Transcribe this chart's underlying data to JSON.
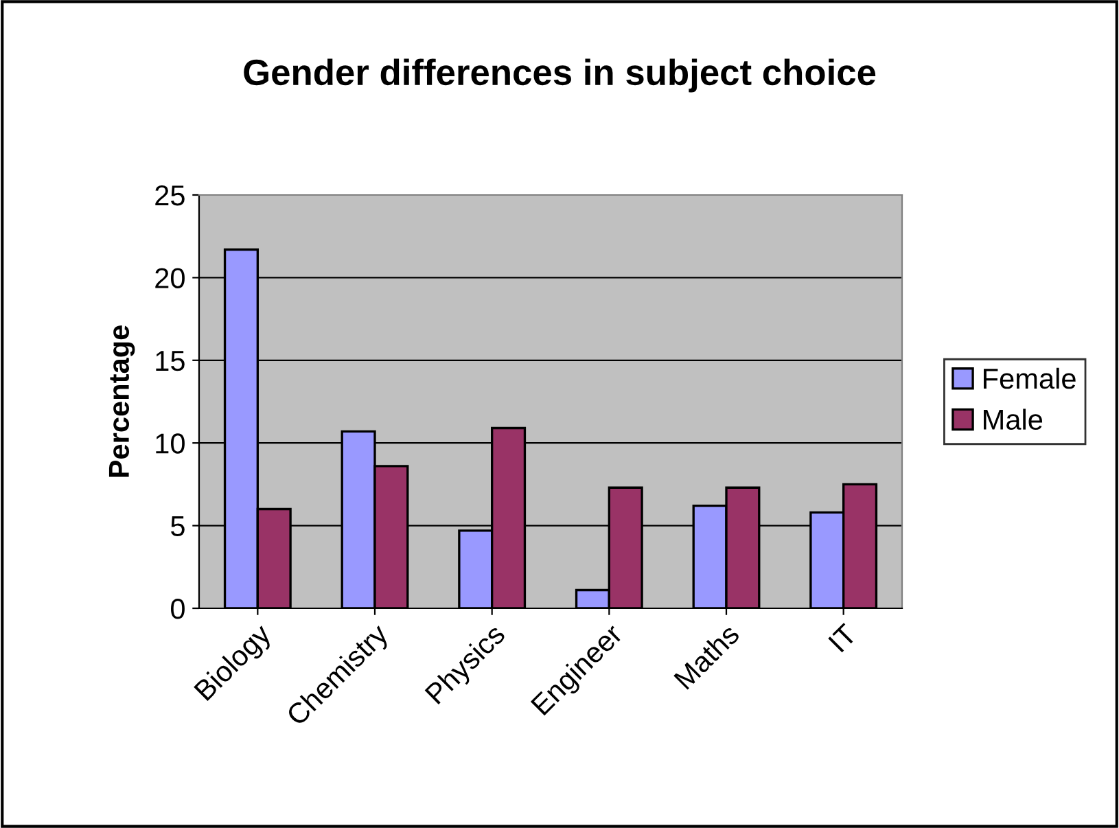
{
  "chart_data": {
    "type": "bar",
    "title": "Gender differences in subject choice",
    "ylabel": "Percentage",
    "categories": [
      "Biology",
      "Chemistry",
      "Physics",
      "Engineer",
      "Maths",
      "IT"
    ],
    "series": [
      {
        "name": "Female",
        "color": "#9999ff",
        "values": [
          21.7,
          10.7,
          4.7,
          1.1,
          6.2,
          5.8
        ]
      },
      {
        "name": "Male",
        "color": "#993366",
        "values": [
          6.0,
          8.6,
          10.9,
          7.3,
          7.3,
          7.5
        ]
      }
    ],
    "ylim": [
      0,
      25
    ],
    "yticks": [
      0,
      5,
      10,
      15,
      20,
      25
    ],
    "grid": "y",
    "legend": "right"
  }
}
